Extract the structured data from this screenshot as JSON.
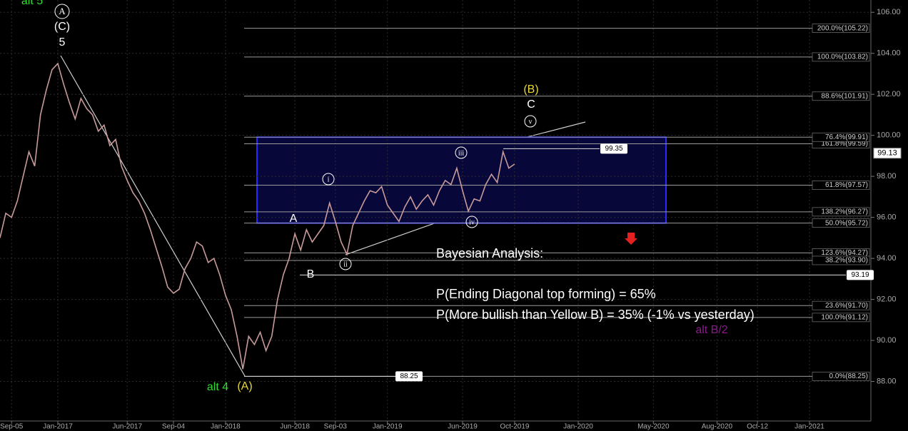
{
  "chart_data": {
    "type": "line",
    "categories": [
      null,
      null,
      "Sep-05",
      null,
      null,
      null,
      null,
      null,
      null,
      null,
      "Jan-2017",
      null,
      null,
      null,
      null,
      null,
      null,
      null,
      null,
      null,
      null,
      null,
      "Jun-2017",
      null,
      null,
      null,
      null,
      null,
      null,
      null,
      "Sep-04",
      null,
      null,
      null,
      null,
      null,
      null,
      null,
      null,
      "Jan-2018",
      null,
      null,
      null,
      null,
      null,
      null,
      null,
      null,
      null,
      null,
      null,
      "Jun-2018",
      null,
      null,
      null,
      null,
      null,
      null,
      "Sep-03",
      null,
      null,
      null,
      null,
      null,
      null,
      null,
      null,
      "Jan-2019",
      null,
      null,
      null,
      null,
      null,
      null,
      null,
      null,
      null,
      null,
      null,
      null,
      "Jun-2019",
      null,
      null,
      null,
      null,
      null,
      null,
      null,
      null,
      "Oct-2019",
      null,
      null,
      null,
      null,
      null,
      null,
      null,
      null,
      null,
      null,
      "Jan-2020",
      null,
      null,
      null,
      null,
      null,
      null,
      null,
      null,
      null,
      null,
      null,
      null,
      "May-2020",
      null,
      null,
      null,
      null,
      null,
      null,
      null,
      null,
      null,
      null,
      "Aug-2020",
      null,
      null,
      null,
      null,
      null,
      null,
      "Oct-12",
      null,
      null,
      null,
      null,
      null,
      null,
      null,
      null,
      "Jan-2021",
      null,
      null,
      null,
      null,
      null,
      null,
      null,
      null,
      null,
      null
    ],
    "series": [
      {
        "color": "#c89a9a",
        "values": [
          95,
          96.2,
          96,
          96.8,
          98,
          99.2,
          98.5,
          101,
          102.2,
          103.2,
          103.5,
          102.5,
          101.6,
          100.8,
          101.8,
          101.3,
          101,
          100.2,
          100.5,
          99.5,
          99.8,
          98.5,
          97.8,
          97.2,
          96.8,
          96.2,
          95.4,
          94.5,
          93.6,
          92.6,
          92.3,
          92.5,
          93.5,
          94,
          94.8,
          94.6,
          93.8,
          94,
          93.2,
          92.2,
          91.5,
          90.2,
          88.6,
          90.2,
          89.8,
          90.4,
          89.5,
          90.2,
          92,
          93.2,
          94,
          95.2,
          94.4,
          95.4,
          94.8,
          95.2,
          95.6,
          96.7,
          95.8,
          94.8,
          94.2,
          95.6,
          96.2,
          96.8,
          97.3,
          97.2,
          97.5,
          96.6,
          96.2,
          95.8,
          96.5,
          97,
          96.4,
          96.8,
          97.1,
          96.6,
          97.3,
          97.8,
          97.6,
          98.4,
          97.3,
          96.3,
          96.9,
          96.8,
          97.6,
          98.1,
          97.7,
          99.2,
          98.4,
          98.6,
          null,
          null,
          null,
          null,
          null,
          null,
          null,
          null,
          null,
          null,
          null,
          null,
          null,
          null,
          null,
          null,
          null,
          null,
          null,
          null,
          null,
          null,
          null,
          null,
          null,
          null,
          null,
          null,
          null,
          null,
          null,
          null,
          null,
          null,
          null,
          null,
          null,
          null,
          null,
          null,
          null,
          null,
          null,
          null,
          null,
          null,
          null,
          null,
          null,
          null,
          null,
          null,
          null,
          null,
          null,
          null,
          null,
          null,
          null,
          null,
          null
        ]
      }
    ],
    "ylim": [
      86,
      106.6
    ],
    "yticks": [
      {
        "value": 88,
        "label": "88.00"
      },
      {
        "value": 90,
        "label": "90.00"
      },
      {
        "value": 92,
        "label": "92.00"
      },
      {
        "value": 94,
        "label": "94.00"
      },
      {
        "value": 96,
        "label": "96.00"
      },
      {
        "value": 98,
        "label": "98.00"
      },
      {
        "value": 100,
        "label": "100.00"
      },
      {
        "value": 102,
        "label": "102.00"
      },
      {
        "value": 104,
        "label": "104.00"
      },
      {
        "value": 106,
        "label": "106.00"
      }
    ],
    "grid": true,
    "levels": [
      {
        "value": 105.22,
        "label": "200.0%(105.22)"
      },
      {
        "value": 103.82,
        "label": "100.0%(103.82)"
      },
      {
        "value": 101.91,
        "label": "88.6%(101.91)"
      },
      {
        "value": 99.59,
        "label": "161.8%(99.59)"
      },
      {
        "value": 99.91,
        "label": "76.4%(99.91)"
      },
      {
        "value": 97.57,
        "label": "61.8%(97.57)"
      },
      {
        "value": 96.27,
        "label": "138.2%(96.27)"
      },
      {
        "value": 95.72,
        "label": "50.0%(95.72)"
      },
      {
        "value": 94.27,
        "label": "123.6%(94.27)"
      },
      {
        "value": 93.9,
        "label": "38.2%(93.90)"
      },
      {
        "value": 91.7,
        "label": "23.6%(91.70)"
      },
      {
        "value": 91.12,
        "label": "100.0%(91.12)"
      },
      {
        "value": 88.25,
        "label": "0.0%(88.25)"
      }
    ],
    "price_markers": [
      99.35,
      93.19,
      88.25
    ],
    "current_price": 99.13,
    "annotations": [
      {
        "text": "alt 5",
        "color": "#33dd33"
      },
      {
        "text": "A",
        "color": "#ffffff",
        "circled": true
      },
      {
        "text": "(C)",
        "color": "#ffffff"
      },
      {
        "text": "5",
        "color": "#ffffff"
      },
      {
        "text": "A",
        "color": "#ffffff"
      },
      {
        "text": "B",
        "color": "#ffffff"
      },
      {
        "text": "i",
        "color": "#ffffff",
        "circled": true
      },
      {
        "text": "ii",
        "color": "#ffffff",
        "circled": true
      },
      {
        "text": "iii",
        "color": "#ffffff",
        "circled": true
      },
      {
        "text": "iv",
        "color": "#ffffff",
        "circled": true
      },
      {
        "text": "v",
        "color": "#ffffff",
        "circled": true
      },
      {
        "text": "(B)",
        "color": "#e8d83a"
      },
      {
        "text": "C",
        "color": "#ffffff"
      },
      {
        "text": "alt 4",
        "color": "#33dd33"
      },
      {
        "text": "(A)",
        "color": "#e8d83a"
      },
      {
        "text": "alt B/2",
        "color": "#8a1a8a"
      }
    ],
    "notes": [
      "Bayesian Analysis:",
      "P(Ending Diagonal top forming) = 65%",
      "P(More bullish than Yellow B) = 35% (-1% vs yesterday)"
    ]
  }
}
